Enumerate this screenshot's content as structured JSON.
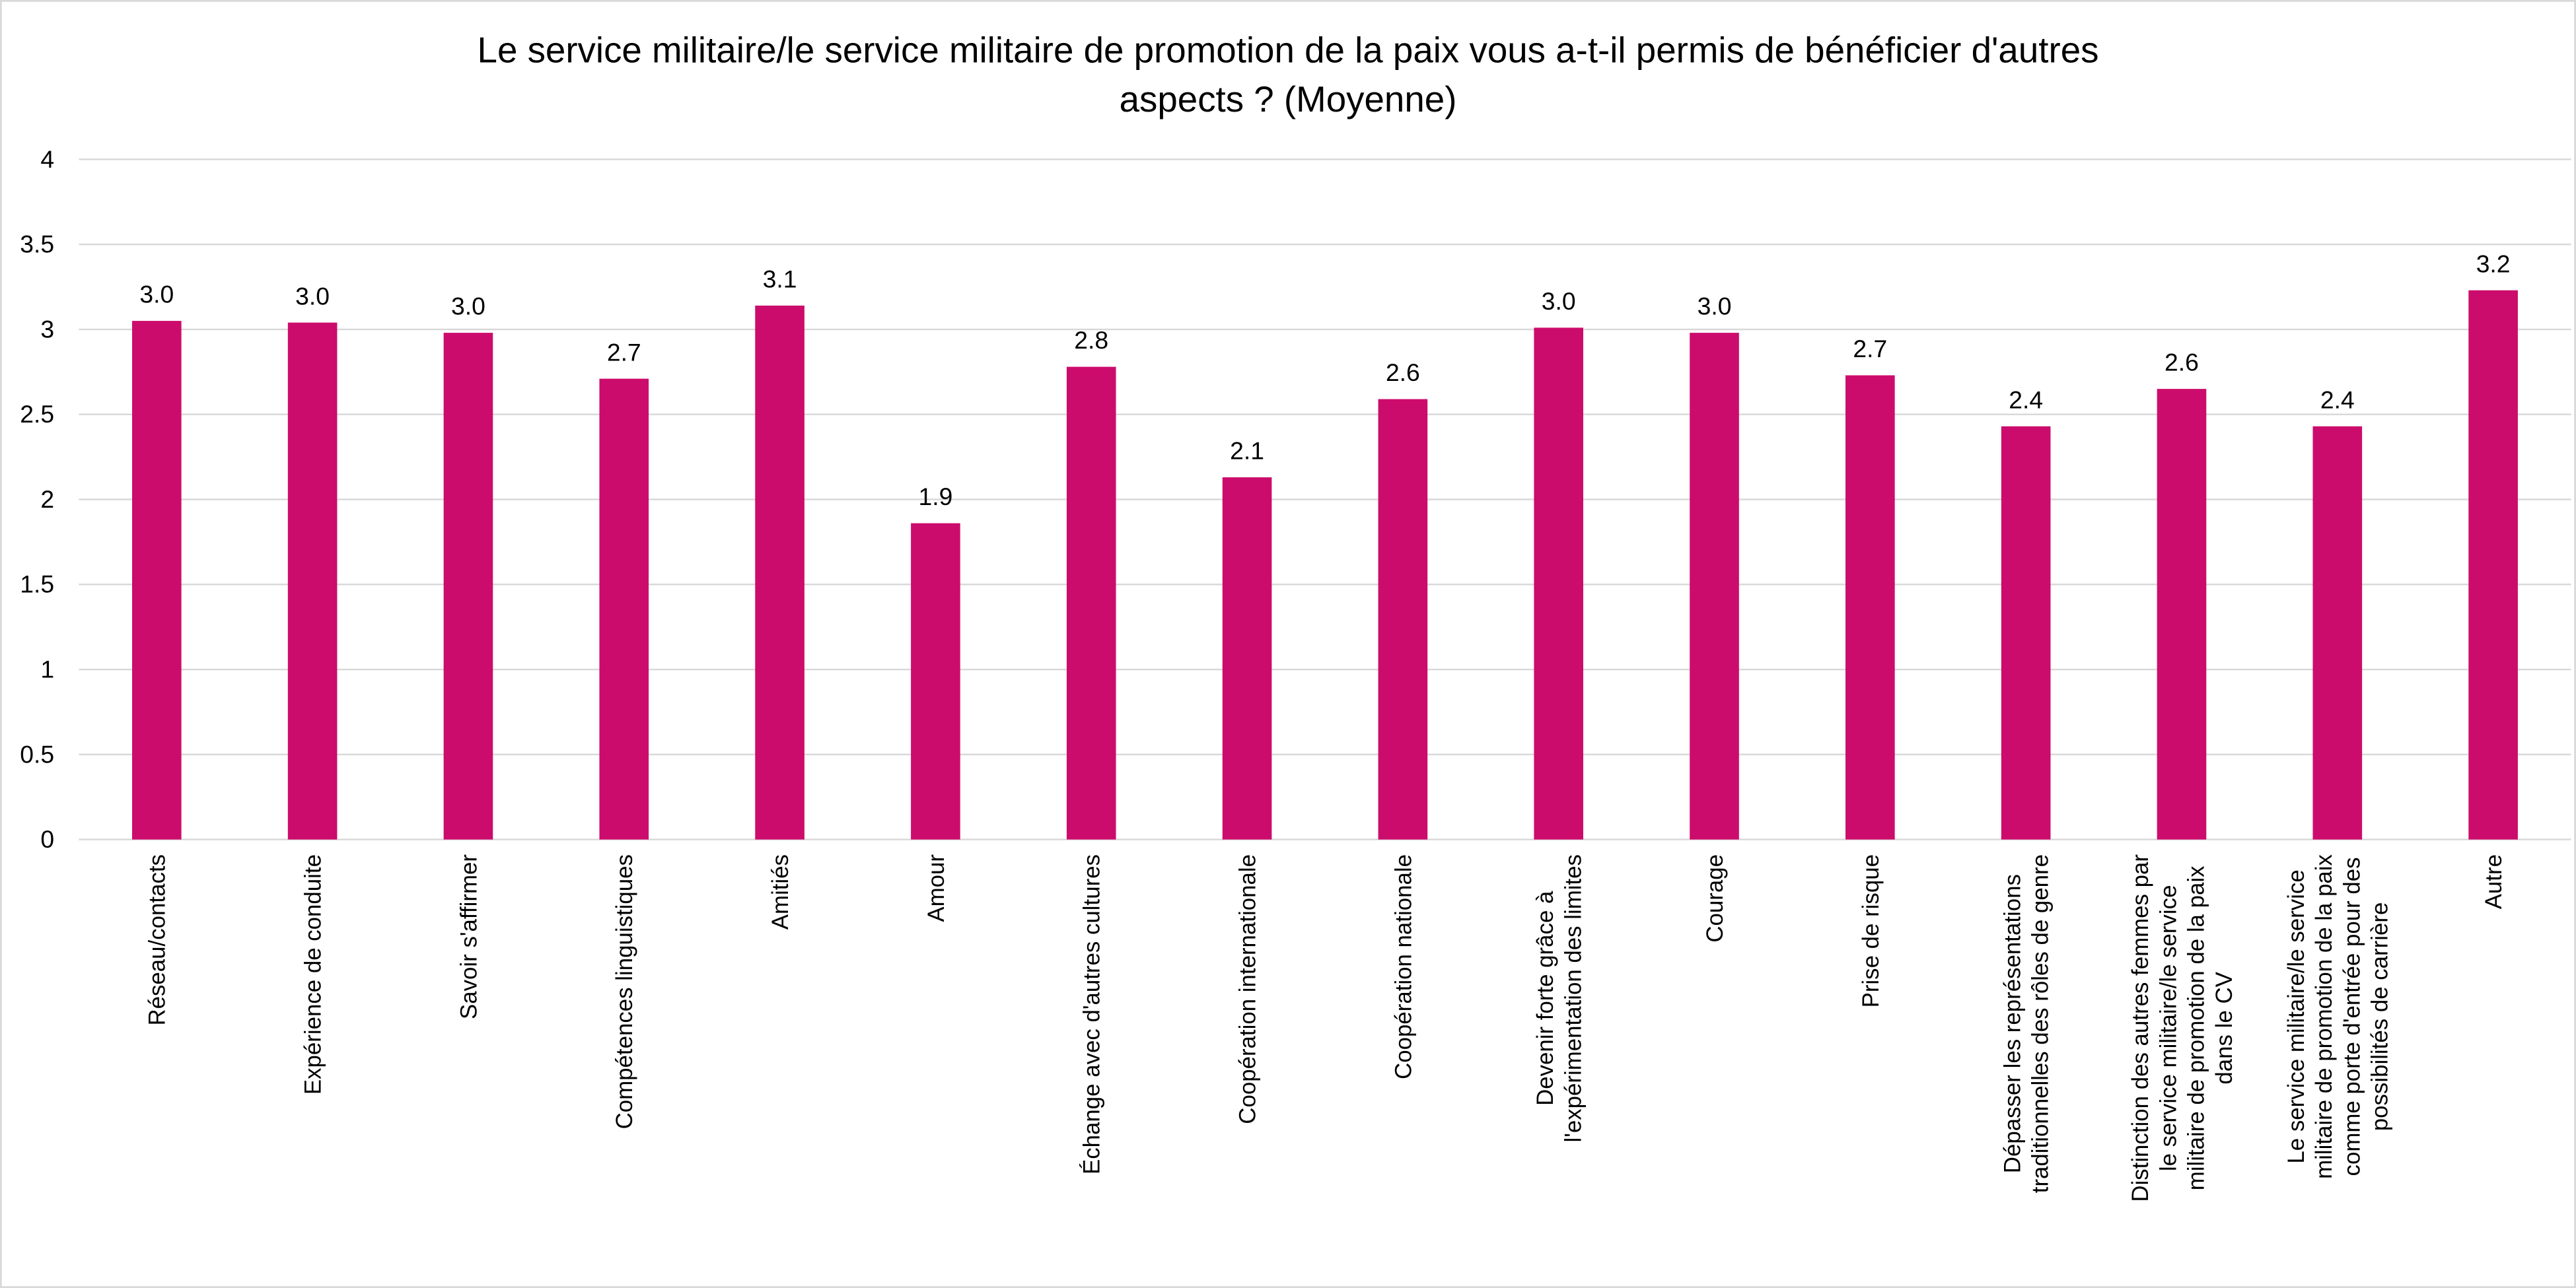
{
  "chart_data": {
    "type": "bar",
    "title": [
      "Le service militaire/le service militaire de promotion de la paix vous a-t-il permis de bénéficier d'autres",
      "aspects ? (Moyenne)"
    ],
    "xlabel": "",
    "ylabel": "",
    "ylim": [
      0,
      4
    ],
    "yticks": [
      "0",
      "0.5",
      "1",
      "1.5",
      "2",
      "2.5",
      "3",
      "3.5",
      "4"
    ],
    "grid": true,
    "bar_color": "#cc0c6c",
    "categories": [
      [
        "Réseau/contacts"
      ],
      [
        "Expérience de conduite"
      ],
      [
        "Savoir s'affirmer"
      ],
      [
        "Compétences linguistiques"
      ],
      [
        "Amitiés"
      ],
      [
        "Amour"
      ],
      [
        "Échange avec d'autres cultures"
      ],
      [
        "Coopération internationale"
      ],
      [
        "Coopération nationale"
      ],
      [
        "Devenir forte grâce à",
        "l'expérimentation des limites"
      ],
      [
        "Courage"
      ],
      [
        "Prise de risque"
      ],
      [
        "Dépasser les représentations",
        "traditionnelles des rôles de genre"
      ],
      [
        "Distinction des autres femmes par",
        "le service militaire/le service",
        "militaire de promotion de la paix",
        "dans le CV"
      ],
      [
        "Le service militaire/le service",
        "militaire de promotion de la paix",
        "comme porte d'entrée pour des",
        "possibilités de carrière"
      ],
      [
        "Autre"
      ]
    ],
    "values": [
      3.05,
      3.04,
      2.98,
      2.71,
      3.14,
      1.86,
      2.78,
      2.13,
      2.59,
      3.01,
      2.98,
      2.73,
      2.43,
      2.65,
      2.43,
      3.23
    ],
    "data_labels": [
      "3.0",
      "3.0",
      "3.0",
      "2.7",
      "3.1",
      "1.9",
      "2.8",
      "2.1",
      "2.6",
      "3.0",
      "3.0",
      "2.7",
      "2.4",
      "2.6",
      "2.4",
      "3.2"
    ]
  }
}
